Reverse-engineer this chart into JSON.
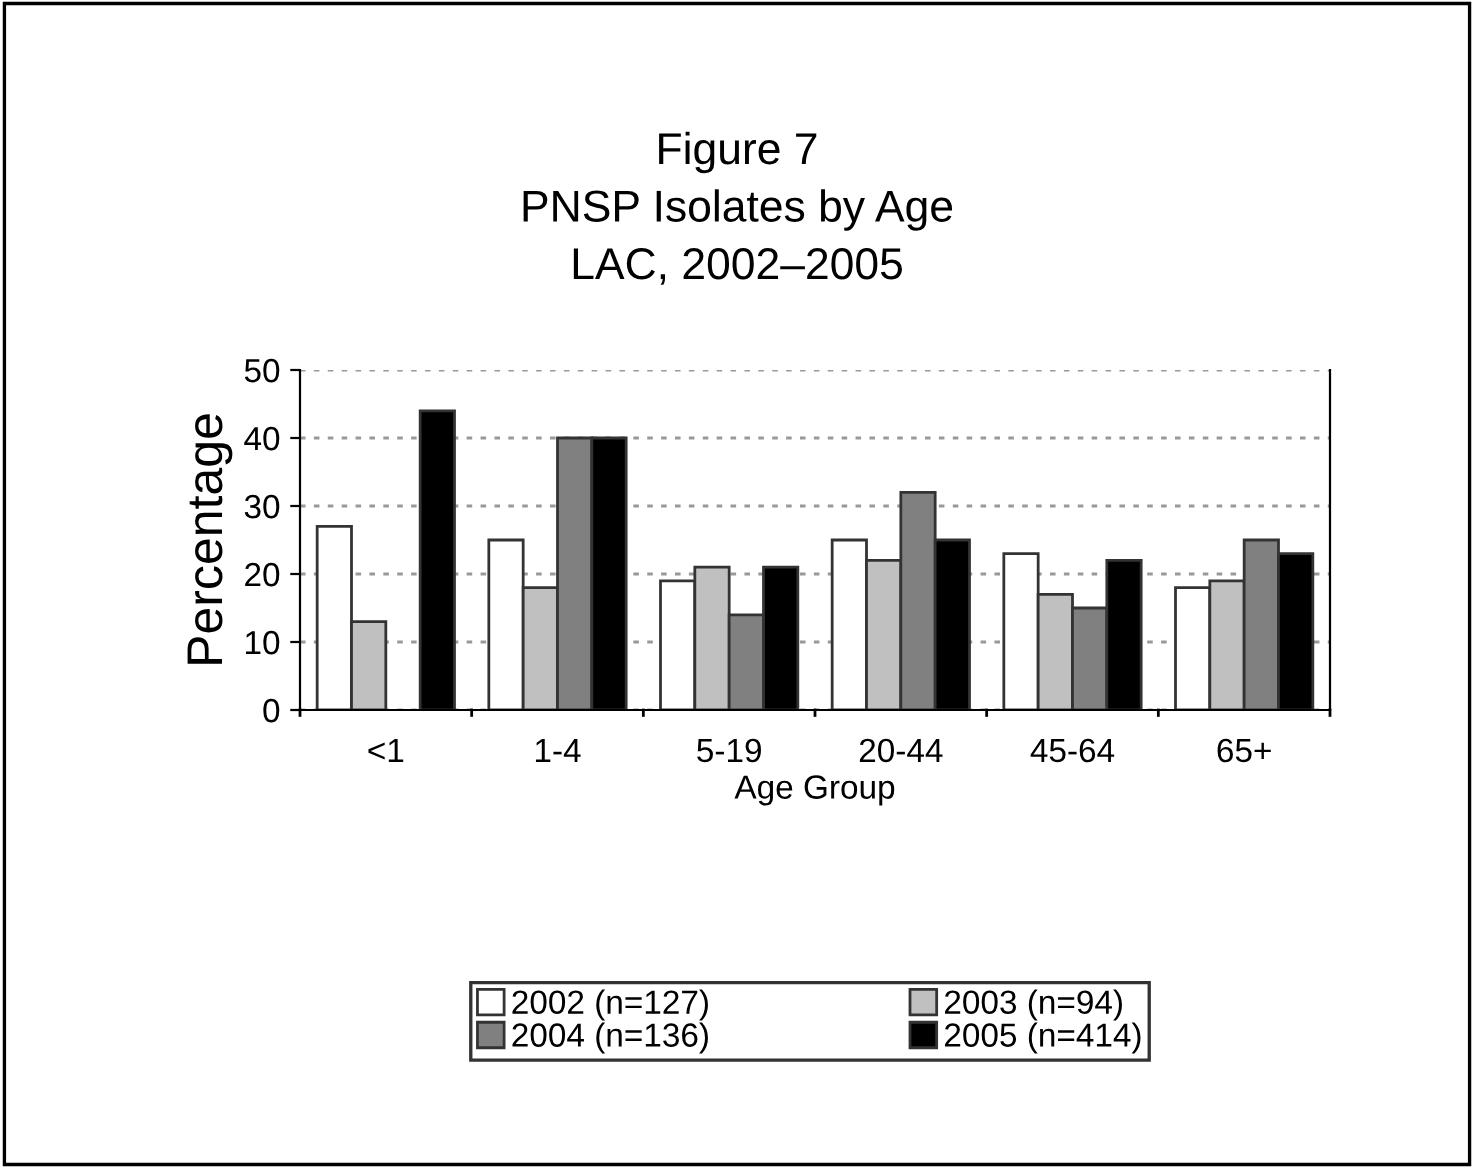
{
  "chart_data": {
    "type": "bar",
    "title": "Figure 7\nPNSP Isolates by Age\nLAC, 2002–2005",
    "xlabel": "Age Group",
    "ylabel": "Percentage",
    "categories": [
      "<1",
      "1-4",
      "5-19",
      "20-44",
      "45-64",
      "65+"
    ],
    "series": [
      {
        "name": "2002 (n=127)",
        "color": "#ffffff",
        "values": [
          27,
          25,
          19,
          25,
          23,
          18
        ]
      },
      {
        "name": "2003 (n=94)",
        "color": "#c0c0c0",
        "values": [
          13,
          18,
          21,
          22,
          17,
          19
        ]
      },
      {
        "name": "2004 (n=136)",
        "color": "#808080",
        "values": [
          null,
          40,
          14,
          32,
          15,
          25
        ]
      },
      {
        "name": "2005 (n=414)",
        "color": "#000000",
        "values": [
          44,
          40,
          21,
          25,
          22,
          23
        ]
      }
    ],
    "ylim": [
      0,
      50
    ],
    "yticks": [
      0,
      10,
      20,
      30,
      40,
      50
    ],
    "grid": "y",
    "legend": "bottom"
  }
}
